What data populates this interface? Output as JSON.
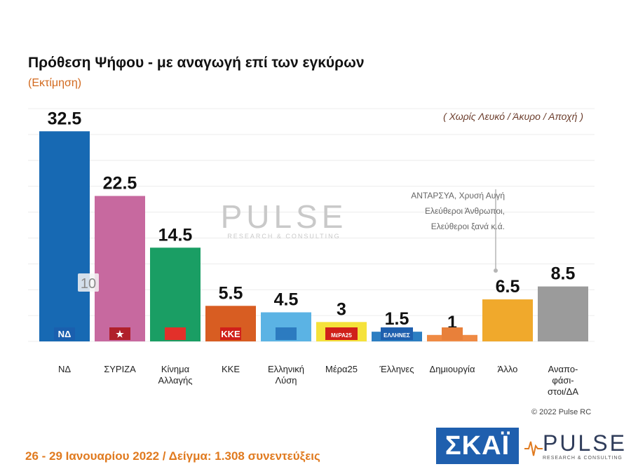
{
  "title": "Πρόθεση Ψήφου - με αναγωγή επί των εγκύρων",
  "subtitle": "(Εκτίμηση)",
  "note": "( Χωρίς Λευκό / Άκυρο / Αποχή )",
  "watermark": {
    "name": "PULSE",
    "sub": "RESEARCH & CONSULTING"
  },
  "other_note_lines": [
    "ΑΝΤΑΡΣΥΑ, Χρυσή Αυγή",
    "Ελεύθεροι Άνθρωποι,",
    "Ελεύθεροι ξανά        κ.ά."
  ],
  "copyright": "© 2022 Pulse RC",
  "footer": "26 - 29 Ιανουαρίου  2022  /  Δείγμα:  1.308 συνεντεύξεις",
  "logos": {
    "skai": "ΣΚΑΪ",
    "pulse": "PULSE",
    "pulse_sub": "RESEARCH & CONSULTING"
  },
  "bar_logos": [
    {
      "index": 0,
      "text": "ΝΔ",
      "color": "#1a5fae"
    },
    {
      "index": 1,
      "text": "★",
      "color": "#b0202a"
    },
    {
      "index": 2,
      "text": "",
      "color": "#e2302a"
    },
    {
      "index": 3,
      "text": "ΚΚΕ",
      "color": "#d0201a"
    },
    {
      "index": 4,
      "text": "",
      "color": "#2c7bc0"
    },
    {
      "index": 5,
      "text": "ΜέΡΑ25",
      "color": "#d0201a"
    },
    {
      "index": 6,
      "text": "ΕΛΛΗΝΕΣ",
      "color": "#1f5fae"
    },
    {
      "index": 7,
      "text": "",
      "color": "#e8803a"
    }
  ],
  "chart_data": {
    "type": "bar",
    "title": "Πρόθεση Ψήφου - με αναγωγή επί των εγκύρων",
    "categories": [
      "ΝΔ",
      "ΣΥΡΙΖΑ",
      "Κίνημα Αλλαγής",
      "ΚΚΕ",
      "Ελληνική Λύση",
      "Μέρα25",
      "Έλληνες",
      "Δημιουργία",
      "Άλλο",
      "Αναπο-φάσι-στοι/ΔΑ"
    ],
    "category_lines": [
      [
        "ΝΔ"
      ],
      [
        "ΣΥΡΙΖΑ"
      ],
      [
        "Κίνημα",
        "Αλλαγής"
      ],
      [
        "ΚΚΕ"
      ],
      [
        "Ελληνική",
        "Λύση"
      ],
      [
        "Μέρα25"
      ],
      [
        "Έλληνες"
      ],
      [
        "Δημιουργία"
      ],
      [
        "Άλλο"
      ],
      [
        "Αναπο-",
        "φάσι-",
        "στοι/ΔΑ"
      ]
    ],
    "values": [
      32.5,
      22.5,
      14.5,
      5.5,
      4.5,
      3,
      1.5,
      1,
      6.5,
      8.5
    ],
    "value_labels": [
      "32.5",
      "22.5",
      "14.5",
      "5.5",
      "4.5",
      "3",
      "1.5",
      "1",
      "6.5",
      "8.5"
    ],
    "colors": [
      "#1769b3",
      "#c7699f",
      "#1a9e64",
      "#d85d22",
      "#5bb3e4",
      "#f5e23a",
      "#2c7ec2",
      "#ef8a44",
      "#f0a92c",
      "#9b9b9b"
    ],
    "annotation": {
      "index": 1,
      "text": "10"
    },
    "ylim": [
      0,
      36
    ],
    "grid": true,
    "xlabel": "",
    "ylabel": ""
  }
}
